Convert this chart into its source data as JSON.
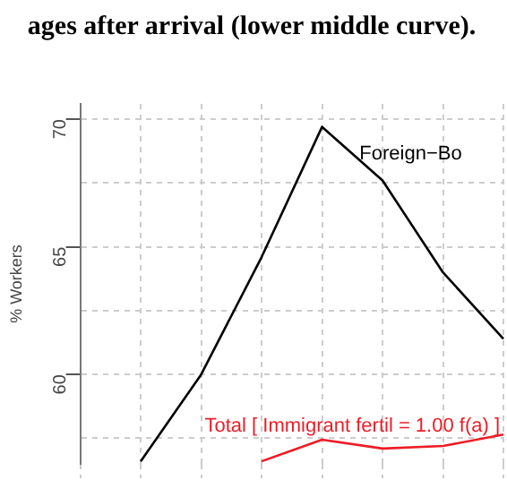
{
  "chart_data": {
    "type": "line",
    "title": "ages after arrival (lower middle curve).",
    "ylabel": "% Workers",
    "categories": [
      null,
      null,
      null,
      null,
      null,
      null,
      null,
      null
    ],
    "series": [
      {
        "name": "Foreign−Bo",
        "color": "#000000",
        "values": [
          null,
          56.6,
          60,
          64.6,
          69.7,
          67.6,
          64.0,
          61.4
        ]
      },
      {
        "name": "Total [ Immigrant fertil = 1.00 f(a) ]",
        "color": "#ee1c25",
        "values": [
          null,
          null,
          null,
          56.6,
          57.45,
          57.1,
          57.2,
          57.65
        ]
      }
    ],
    "ylim": [
      56.5,
      70.6
    ],
    "yticks": [
      {
        "value": 57.5,
        "label": null
      },
      60,
      {
        "value": 62.5,
        "label": null
      },
      65,
      {
        "value": 67.5,
        "label": null
      },
      70
    ],
    "grid": true,
    "legend": false,
    "marker": "none",
    "line_style": "solid",
    "tick_labels": "y"
  }
}
